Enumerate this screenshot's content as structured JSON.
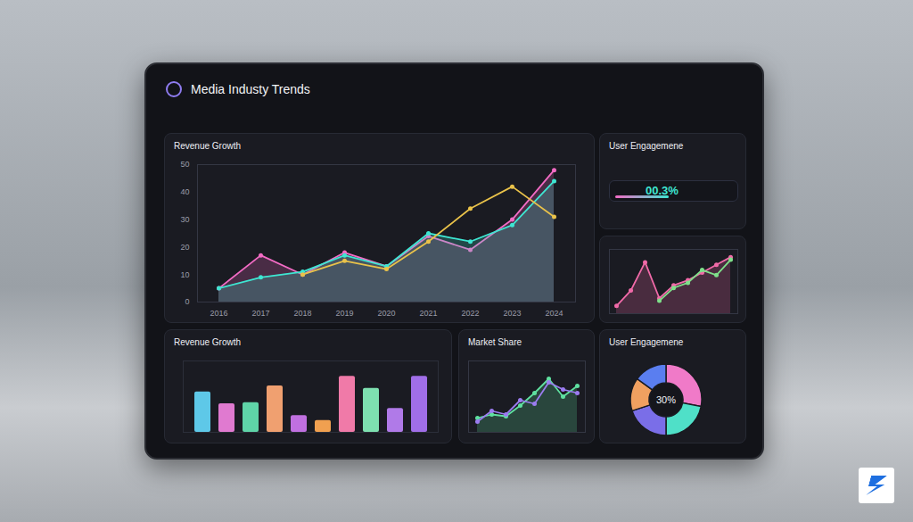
{
  "header": {
    "title": "Media Industy Trends"
  },
  "kpi": {
    "title": "User Engagemene",
    "value": "00.3%"
  },
  "chart_data": [
    {
      "type": "line",
      "title": "Revenue Growth",
      "categories": [
        "2016",
        "2017",
        "2018",
        "2019",
        "2020",
        "2021",
        "2022",
        "2023",
        "2024"
      ],
      "series": [
        {
          "color": "#f26bc4",
          "type": "area",
          "marker": "circle",
          "values": [
            5,
            17,
            10,
            18,
            13,
            24,
            19,
            30,
            48
          ]
        },
        {
          "color": "#3ee6d2",
          "type": "area",
          "marker": "circle",
          "values": [
            5,
            9,
            11,
            17,
            13,
            25,
            22,
            28,
            44
          ]
        },
        {
          "color": "#e9c24a",
          "type": "line",
          "marker": "circle",
          "values": [
            null,
            null,
            10,
            15,
            12,
            22,
            34,
            42,
            31
          ]
        }
      ],
      "ylim": [
        0,
        50
      ],
      "yticks": [
        0,
        10,
        20,
        30,
        40,
        50
      ],
      "grid": false
    },
    {
      "type": "line",
      "categories": [
        null,
        null,
        null,
        null,
        null,
        null,
        null,
        null,
        null
      ],
      "series": [
        {
          "color": "#f06aa8",
          "type": "area",
          "marker": "circle",
          "values": [
            3,
            9,
            20,
            6,
            11,
            13,
            16,
            19,
            22
          ]
        },
        {
          "color": "#7fe08a",
          "type": "line",
          "marker": "circle",
          "values": [
            null,
            null,
            null,
            5,
            10,
            12,
            17,
            15,
            21
          ]
        }
      ],
      "ylim": [
        0,
        25
      ],
      "tick_labels": false
    },
    {
      "type": "bar",
      "title": "Revenue Growth",
      "categories": [
        null,
        null,
        null,
        null,
        null,
        null,
        null,
        null,
        null,
        null
      ],
      "values": [
        34,
        24,
        25,
        39,
        14,
        10,
        47,
        37,
        20,
        47
      ],
      "colors": [
        "#5ec8e8",
        "#e07ad0",
        "#5fd4a8",
        "#f0a070",
        "#c070e0",
        "#f0a050",
        "#f07aa8",
        "#7ee0b0",
        "#b07ae8",
        "#a06ee8"
      ],
      "ylim": [
        0,
        60
      ],
      "tick_labels": false
    },
    {
      "type": "line",
      "title": "Market Share",
      "categories": [
        null,
        null,
        null,
        null,
        null,
        null,
        null,
        null
      ],
      "series": [
        {
          "color": "#5fe0a0",
          "type": "area",
          "marker": "circle",
          "values": [
            8,
            10,
            9,
            15,
            22,
            30,
            20,
            26
          ]
        },
        {
          "color": "#9b7cf0",
          "type": "line",
          "marker": "circle",
          "values": [
            6,
            12,
            10,
            18,
            16,
            28,
            24,
            22
          ]
        }
      ],
      "ylim": [
        0,
        40
      ],
      "tick_labels": false
    },
    {
      "type": "pie",
      "title": "User Engagemene",
      "center_label": "30%",
      "values": [
        28,
        22,
        20,
        15,
        15
      ],
      "colors": [
        "#f07ac8",
        "#4fe0c8",
        "#7a6ee8",
        "#f0a060",
        "#5a7ef0"
      ]
    }
  ]
}
